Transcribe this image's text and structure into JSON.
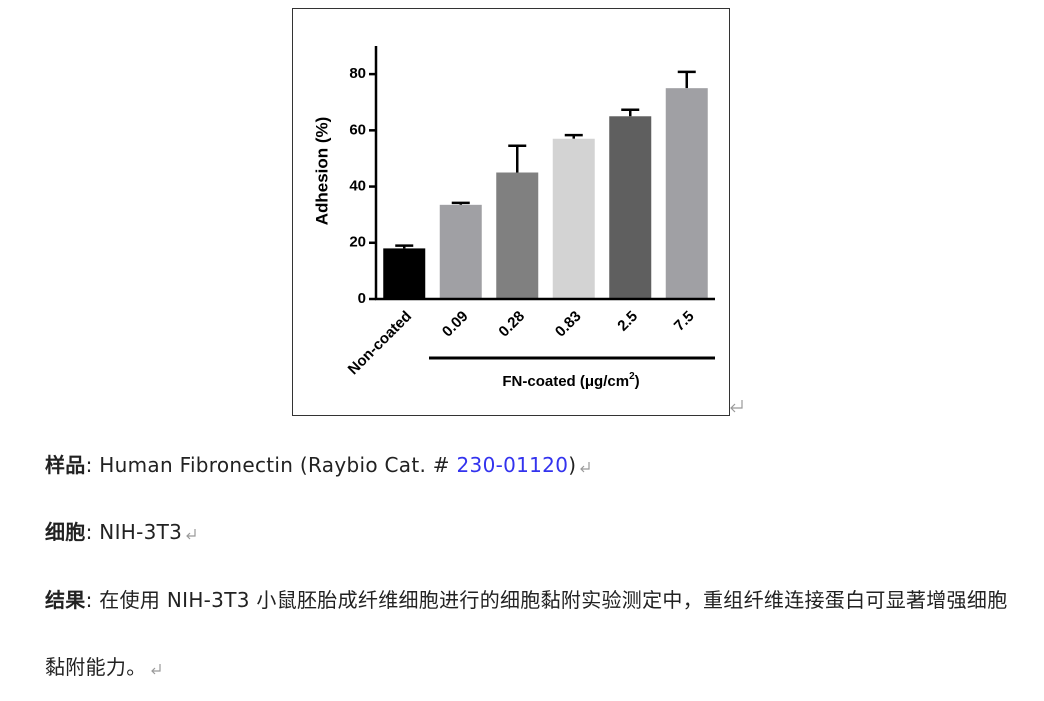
{
  "chart_data": {
    "type": "bar",
    "y_label": "Adhesion (%)",
    "categories": [
      "Non-coated",
      "0.09",
      "0.28",
      "0.83",
      "2.5",
      "7.5"
    ],
    "values": [
      18,
      33.5,
      45,
      57,
      65,
      75
    ],
    "errors": [
      1,
      0.7,
      9.5,
      1.3,
      2.3,
      5.8
    ],
    "colors": [
      "#000000",
      "#a0a0a4",
      "#808080",
      "#d3d3d3",
      "#5f5f5f",
      "#a0a0a4"
    ],
    "ylim": [
      0,
      90
    ],
    "yticks": [
      0,
      20,
      40,
      60,
      80
    ],
    "group_label": {
      "text": "FN-coated (μg/cm",
      "superscript": "2",
      "suffix": ")"
    }
  },
  "document": {
    "paragraphs": [
      {
        "label": "样品",
        "text": ": Human Fibronectin (Raybio Cat. # ",
        "link": "230-01120",
        "tail": ")"
      },
      {
        "label": "细胞",
        "text": ": NIH-3T3"
      },
      {
        "label": "结果",
        "text": ": 在使用 NIH-3T3 小鼠胚胎成纤维细胞进行的细胞黏附实验测定中，重组纤维连接蛋白可显著增强细胞黏附能力。"
      }
    ]
  }
}
